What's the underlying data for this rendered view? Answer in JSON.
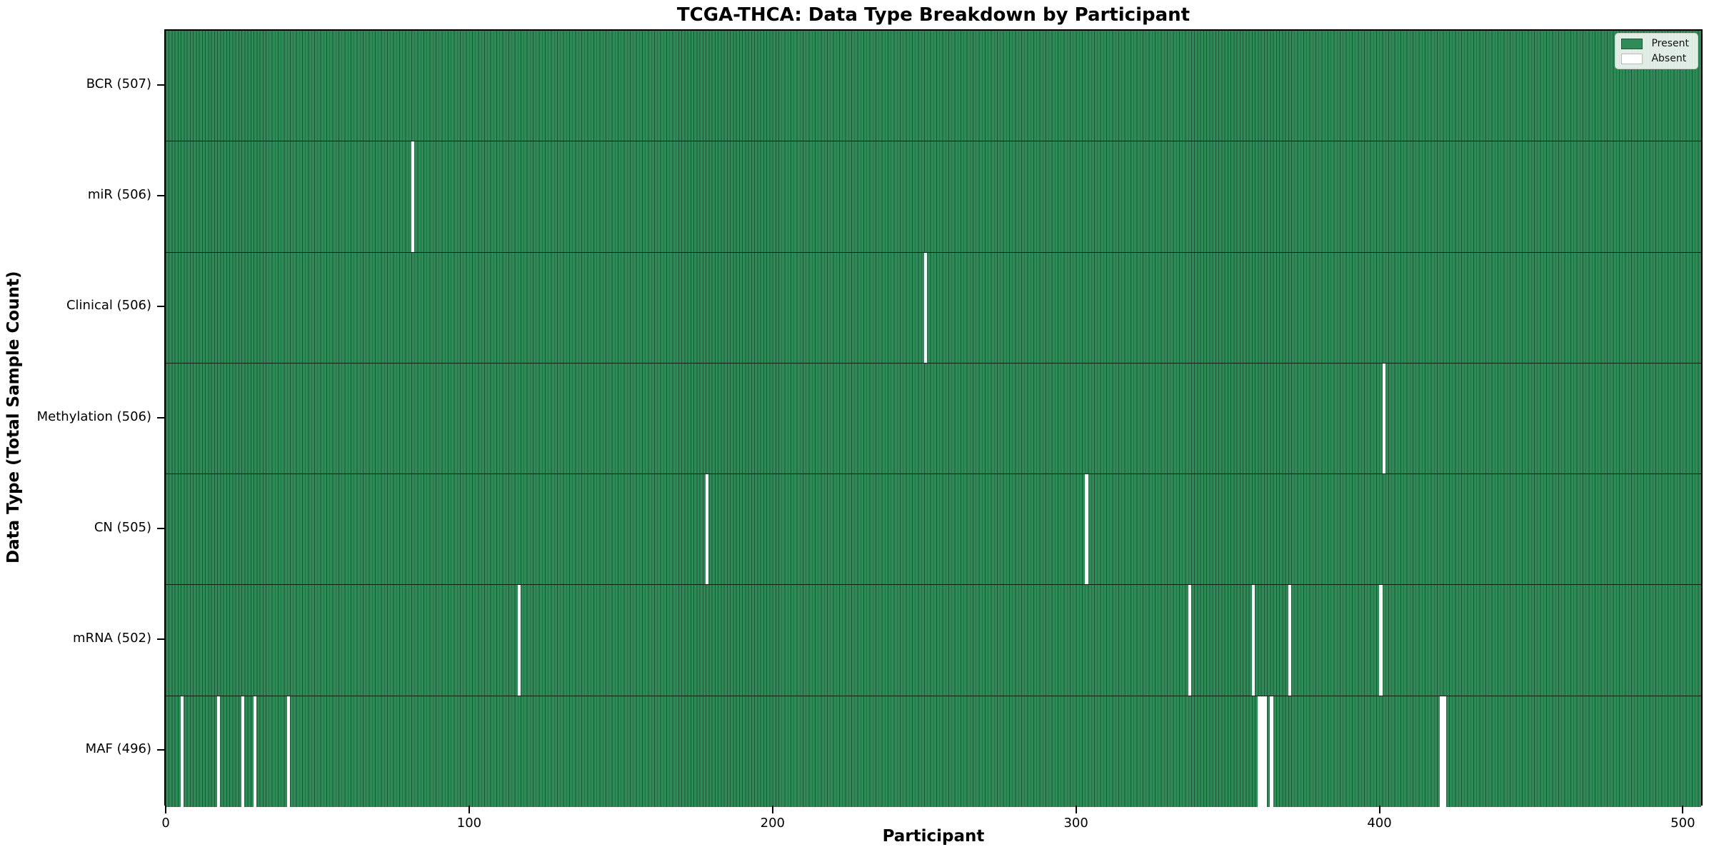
{
  "figure": {
    "title": "TCGA-THCA: Data Type Breakdown by Participant",
    "xlabel": "Participant",
    "ylabel": "Data Type (Total Sample Count)"
  },
  "legend": {
    "items": [
      {
        "name": "present",
        "label": "Present",
        "color": "#2e8b57"
      },
      {
        "name": "absent",
        "label": "Absent",
        "color": "#ffffff"
      }
    ],
    "position": "upper right"
  },
  "axes": {
    "x_ticks": [
      "0",
      "100",
      "200",
      "300",
      "400",
      "500"
    ],
    "x_tick_values": [
      0,
      100,
      200,
      300,
      400,
      500
    ]
  },
  "chart_data": {
    "type": "heatmap",
    "title": "TCGA-THCA: Data Type Breakdown by Participant",
    "xlabel": "Participant",
    "ylabel": "Data Type (Total Sample Count)",
    "n_participants": 507,
    "x_range": [
      -0.5,
      506.5
    ],
    "grid": false,
    "legend_position": "upper right",
    "value_meaning": "1 = data type present for participant, 0 = absent",
    "rows": [
      {
        "label": "BCR (507)",
        "data_type": "BCR",
        "present_count": 507,
        "absent_participants": []
      },
      {
        "label": "miR (506)",
        "data_type": "miR",
        "present_count": 506,
        "absent_participants": [
          81
        ]
      },
      {
        "label": "Clinical (506)",
        "data_type": "Clinical",
        "present_count": 506,
        "absent_participants": [
          250
        ]
      },
      {
        "label": "Methylation (506)",
        "data_type": "Methylation",
        "present_count": 506,
        "absent_participants": [
          401
        ]
      },
      {
        "label": "CN (505)",
        "data_type": "CN",
        "present_count": 505,
        "absent_participants": [
          178,
          303
        ]
      },
      {
        "label": "mRNA (502)",
        "data_type": "mRNA",
        "present_count": 502,
        "absent_participants": [
          116,
          337,
          358,
          370,
          400
        ]
      },
      {
        "label": "MAF (496)",
        "data_type": "MAF",
        "present_count": 496,
        "absent_participants": [
          5,
          17,
          25,
          29,
          40,
          360,
          361,
          362,
          364,
          420,
          421
        ]
      }
    ],
    "colors": {
      "present": "#2e8b57",
      "bar_edge": "#1d5737",
      "absent": "#ffffff",
      "row_separator": "rgba(0,0,0,0.75)",
      "spine": "#000000"
    }
  }
}
